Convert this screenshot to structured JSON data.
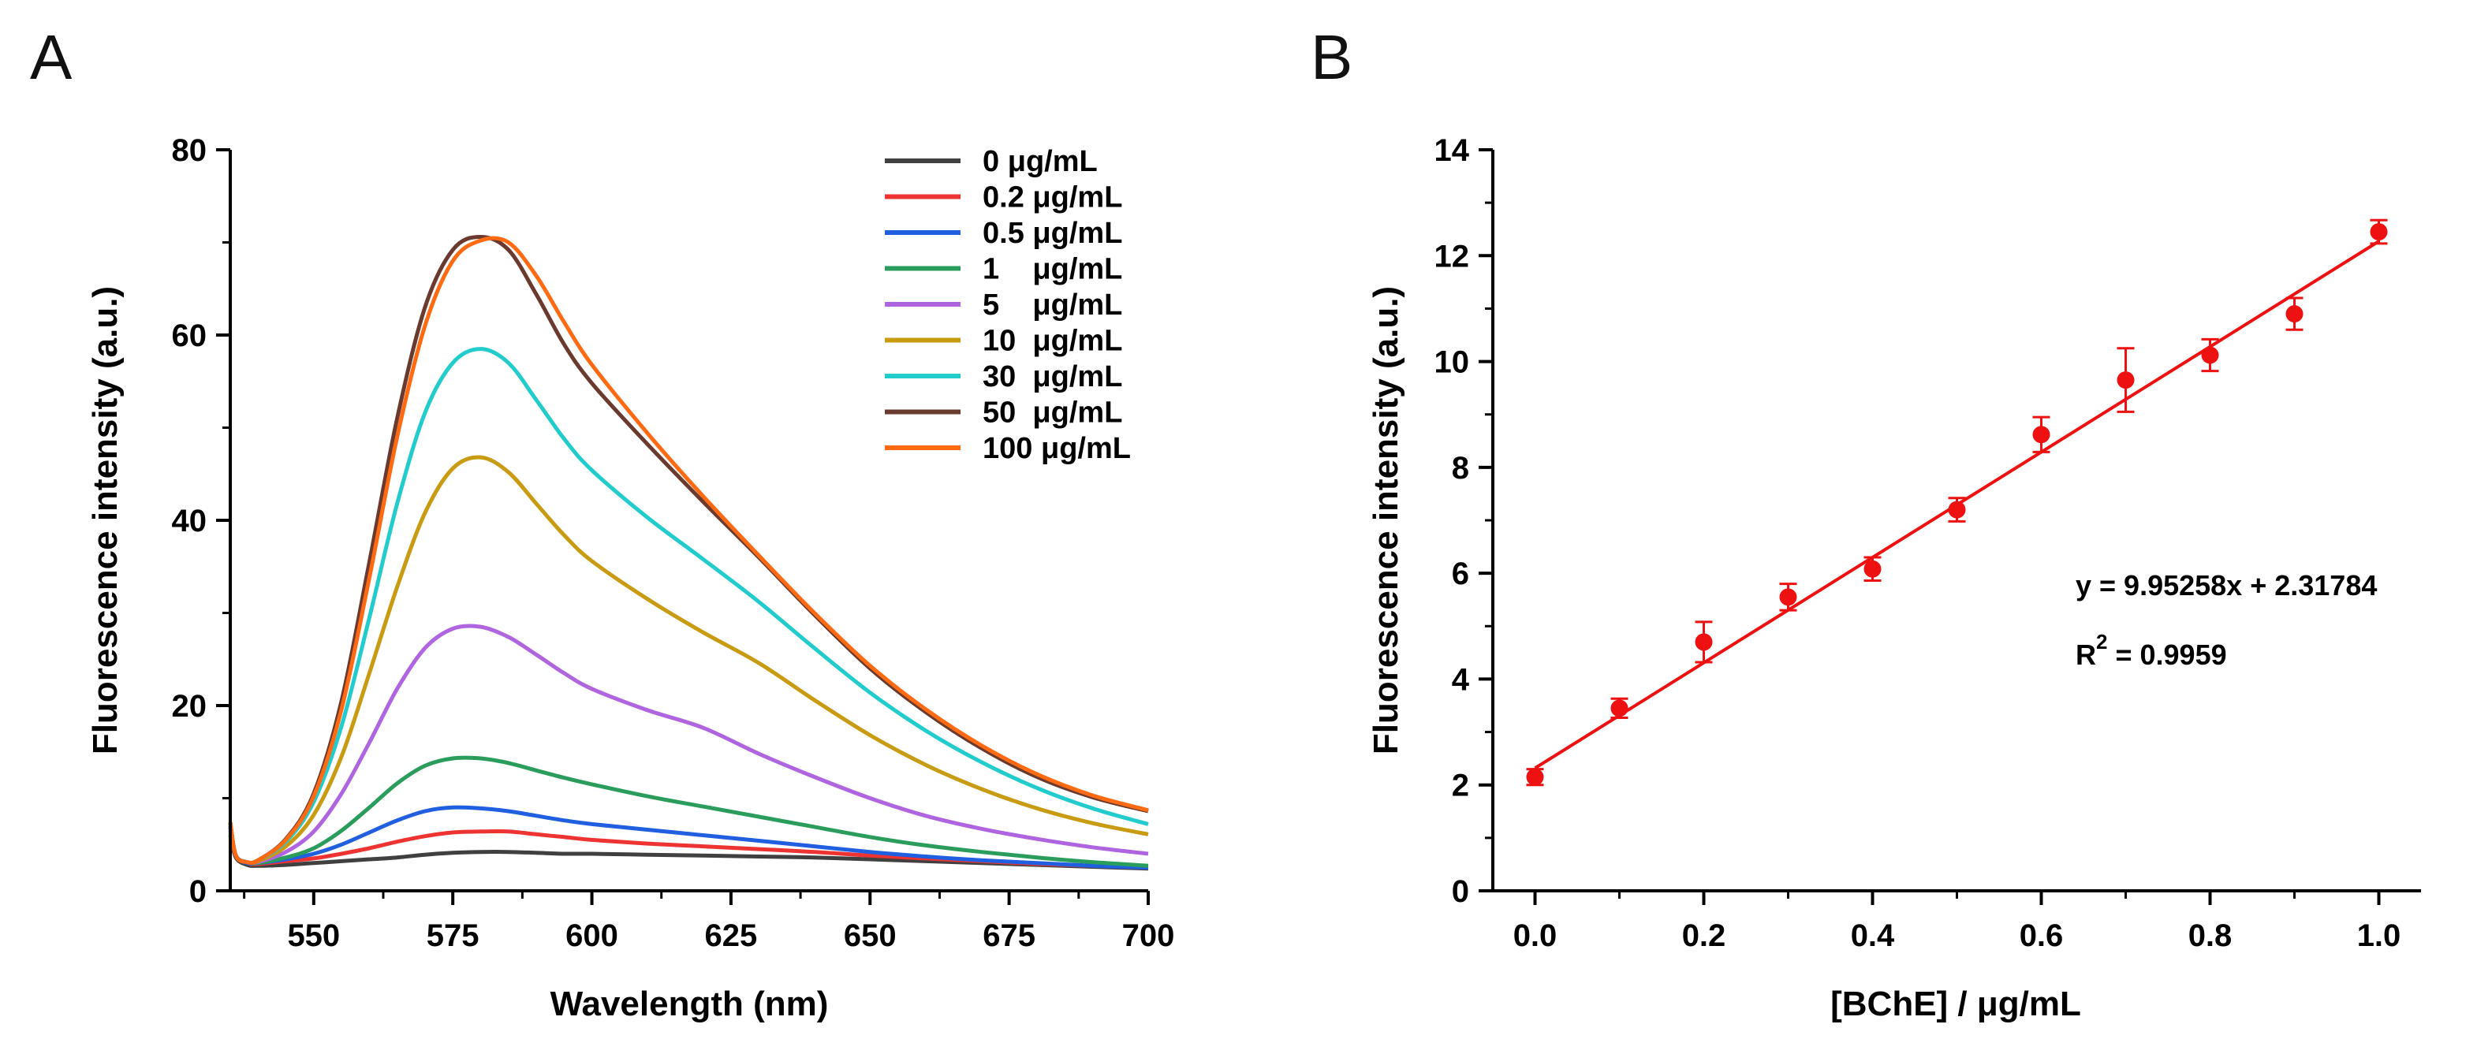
{
  "chart_data": [
    {
      "panel_label": "A",
      "type": "line",
      "title": "",
      "xlabel": "Wavelength (nm)",
      "ylabel": "Fluorescence intensity (a.u.)",
      "xlim": [
        535,
        700
      ],
      "ylim": [
        0,
        80
      ],
      "xticks": [
        550,
        575,
        600,
        625,
        650,
        675,
        700
      ],
      "yticks": [
        0,
        20,
        40,
        60,
        80
      ],
      "legend_position": "top-right",
      "series": [
        {
          "name": "0 μg/mL",
          "color": "#404040",
          "x": [
            535,
            536,
            538,
            540,
            545,
            550,
            555,
            560,
            565,
            570,
            575,
            580,
            585,
            590,
            595,
            600,
            610,
            620,
            630,
            640,
            650,
            660,
            670,
            680,
            690,
            700
          ],
          "y": [
            6.0,
            3.6,
            2.8,
            2.7,
            2.8,
            3.0,
            3.2,
            3.4,
            3.6,
            3.9,
            4.1,
            4.2,
            4.2,
            4.1,
            4.0,
            4.0,
            3.9,
            3.8,
            3.7,
            3.6,
            3.4,
            3.2,
            3.0,
            2.8,
            2.6,
            2.4
          ]
        },
        {
          "name": "0.2 μg/mL",
          "color": "#ee3333",
          "x": [
            535,
            536,
            538,
            540,
            545,
            550,
            555,
            560,
            565,
            570,
            575,
            580,
            585,
            590,
            595,
            600,
            610,
            620,
            630,
            640,
            650,
            660,
            670,
            680,
            690,
            700
          ],
          "y": [
            6.5,
            3.8,
            3.0,
            2.9,
            3.2,
            3.5,
            4.0,
            4.6,
            5.3,
            5.9,
            6.3,
            6.4,
            6.4,
            6.1,
            5.8,
            5.5,
            5.1,
            4.8,
            4.5,
            4.2,
            3.8,
            3.5,
            3.2,
            2.9,
            2.7,
            2.5
          ]
        },
        {
          "name": "0.5 μg/mL",
          "color": "#1f5fe0",
          "x": [
            535,
            536,
            538,
            540,
            545,
            550,
            555,
            560,
            565,
            570,
            575,
            580,
            585,
            590,
            595,
            600,
            610,
            620,
            630,
            640,
            650,
            660,
            670,
            680,
            690,
            700
          ],
          "y": [
            6.8,
            3.8,
            3.0,
            3.0,
            3.4,
            4.0,
            5.0,
            6.3,
            7.6,
            8.6,
            9.0,
            8.9,
            8.6,
            8.1,
            7.6,
            7.2,
            6.6,
            6.0,
            5.4,
            4.8,
            4.2,
            3.7,
            3.3,
            3.0,
            2.7,
            2.5
          ]
        },
        {
          "name": "1    μg/mL",
          "color": "#2a9d5c",
          "x": [
            535,
            536,
            538,
            540,
            545,
            550,
            555,
            560,
            565,
            570,
            575,
            580,
            585,
            590,
            595,
            600,
            610,
            620,
            630,
            640,
            650,
            660,
            670,
            680,
            690,
            700
          ],
          "y": [
            7.0,
            3.8,
            3.1,
            3.0,
            3.6,
            4.6,
            6.5,
            9.0,
            11.6,
            13.5,
            14.3,
            14.3,
            13.8,
            13.0,
            12.2,
            11.5,
            10.2,
            9.1,
            8.0,
            6.9,
            5.8,
            4.9,
            4.2,
            3.6,
            3.1,
            2.7
          ]
        },
        {
          "name": "5    μg/mL",
          "color": "#b065e0",
          "x": [
            535,
            536,
            538,
            540,
            545,
            550,
            555,
            560,
            565,
            570,
            575,
            580,
            585,
            590,
            595,
            600,
            610,
            620,
            630,
            640,
            650,
            660,
            670,
            680,
            690,
            700
          ],
          "y": [
            7.0,
            3.8,
            3.1,
            3.1,
            4.2,
            6.4,
            10.5,
            16.0,
            21.8,
            26.2,
            28.3,
            28.5,
            27.4,
            25.5,
            23.5,
            21.8,
            19.5,
            17.6,
            14.8,
            12.3,
            10.0,
            8.1,
            6.7,
            5.6,
            4.7,
            4.0
          ]
        },
        {
          "name": "10  μg/mL",
          "color": "#c89b12",
          "x": [
            535,
            536,
            538,
            540,
            545,
            550,
            555,
            560,
            565,
            570,
            575,
            580,
            585,
            590,
            595,
            600,
            610,
            620,
            630,
            640,
            650,
            660,
            670,
            680,
            690,
            700
          ],
          "y": [
            7.2,
            3.8,
            3.1,
            3.2,
            4.8,
            8.2,
            14.5,
            23.5,
            32.8,
            40.8,
            45.6,
            46.8,
            45.2,
            41.8,
            38.4,
            35.6,
            31.5,
            27.9,
            24.6,
            20.6,
            16.8,
            13.6,
            11.0,
            8.9,
            7.3,
            6.1
          ]
        },
        {
          "name": "30  μg/mL",
          "color": "#22cccc",
          "x": [
            535,
            536,
            538,
            540,
            545,
            550,
            555,
            560,
            565,
            570,
            575,
            580,
            585,
            590,
            595,
            600,
            610,
            620,
            630,
            640,
            650,
            660,
            670,
            680,
            690,
            700
          ],
          "y": [
            7.4,
            3.8,
            3.1,
            3.3,
            5.3,
            9.6,
            17.8,
            29.5,
            41.8,
            51.6,
            57.0,
            58.5,
            57.0,
            53.0,
            48.8,
            45.4,
            40.3,
            35.8,
            31.2,
            26.2,
            21.4,
            17.3,
            13.9,
            11.1,
            8.9,
            7.2
          ]
        },
        {
          "name": "50  μg/mL",
          "color": "#6b3a2e",
          "x": [
            535,
            536,
            538,
            540,
            545,
            550,
            555,
            560,
            565,
            570,
            575,
            580,
            585,
            590,
            595,
            600,
            610,
            620,
            630,
            640,
            650,
            660,
            670,
            680,
            690,
            700
          ],
          "y": [
            7.4,
            3.8,
            3.1,
            3.3,
            5.6,
            10.5,
            20.5,
            35.5,
            51.0,
            63.0,
            69.2,
            70.6,
            69.2,
            64.4,
            59.0,
            54.8,
            48.2,
            42.0,
            36.0,
            29.8,
            24.0,
            19.3,
            15.4,
            12.3,
            10.1,
            8.6
          ]
        },
        {
          "name": "100 μg/mL",
          "color": "#ff6a13",
          "x": [
            535,
            536,
            538,
            540,
            545,
            550,
            555,
            560,
            565,
            570,
            575,
            580,
            585,
            590,
            595,
            600,
            610,
            620,
            630,
            640,
            650,
            660,
            670,
            680,
            690,
            700
          ],
          "y": [
            7.4,
            3.8,
            3.1,
            3.3,
            5.5,
            10.2,
            19.6,
            33.8,
            49.0,
            61.0,
            68.0,
            70.2,
            70.0,
            66.4,
            61.4,
            56.8,
            49.4,
            42.6,
            36.2,
            30.0,
            24.3,
            19.6,
            15.7,
            12.6,
            10.3,
            8.7
          ]
        }
      ]
    },
    {
      "panel_label": "B",
      "type": "scatter",
      "title": "",
      "xlabel": "[BChE] / μg/mL",
      "ylabel": "Fluorescence intensity (a.u.)",
      "xlim": [
        -0.05,
        1.05
      ],
      "ylim": [
        0,
        14
      ],
      "xticks": [
        "0.0",
        "0.2",
        "0.4",
        "0.6",
        "0.8",
        "1.0"
      ],
      "yticks": [
        "0",
        "2",
        "4",
        "6",
        "8",
        "10",
        "12",
        "14"
      ],
      "color": "#ee1111",
      "x": [
        0.0,
        0.1,
        0.2,
        0.3,
        0.4,
        0.5,
        0.6,
        0.7,
        0.8,
        0.9,
        1.0
      ],
      "y": [
        2.15,
        3.45,
        4.7,
        5.55,
        6.08,
        7.2,
        8.62,
        9.65,
        10.12,
        10.9,
        12.45
      ],
      "yerr": [
        0.15,
        0.18,
        0.38,
        0.25,
        0.22,
        0.22,
        0.33,
        0.6,
        0.3,
        0.3,
        0.22
      ],
      "fit": {
        "slope": 9.95258,
        "intercept": 2.31784,
        "x_range": [
          0,
          1
        ]
      },
      "annotations": {
        "equation": "y = 9.95258x + 2.31784",
        "r2_prefix": "R",
        "r2_superscript": "2",
        "r2_value": " = 0.9959"
      }
    }
  ]
}
